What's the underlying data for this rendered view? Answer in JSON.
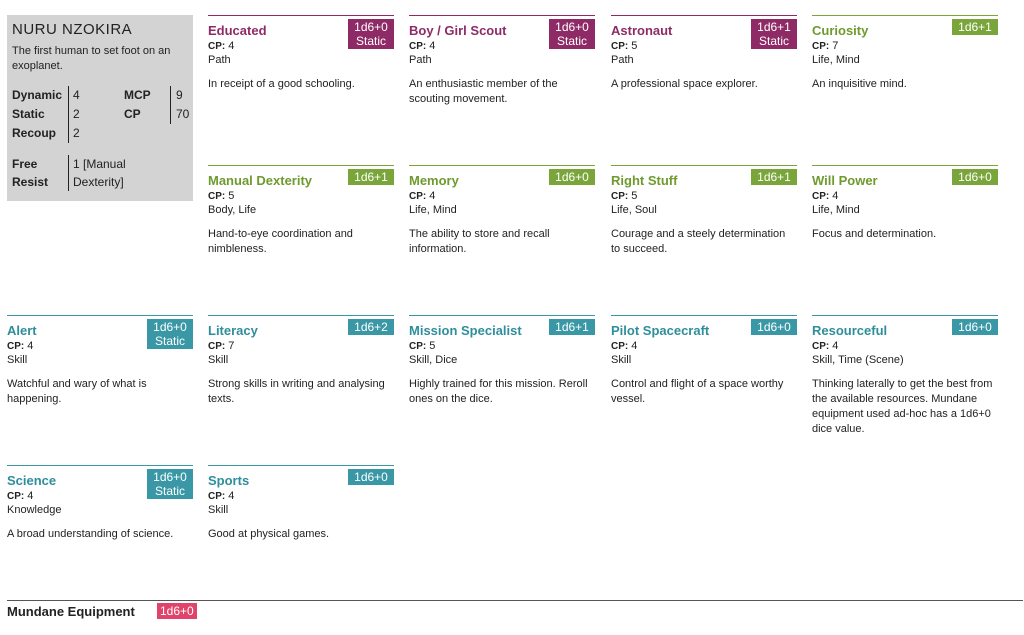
{
  "character": {
    "name": "NURU NZOKIRA",
    "description": "The first human to set foot on an exoplanet.",
    "stats": {
      "dynamic_label": "Dynamic",
      "dynamic": "4",
      "mcp_label": "MCP",
      "mcp": "9",
      "static_label": "Static",
      "static": "2",
      "cp_label": "CP",
      "cp": "70",
      "recoup_label": "Recoup",
      "recoup": "2"
    },
    "free_resist": {
      "label1": "Free",
      "label2": "Resist",
      "value1": "1 [Manual",
      "value2": "Dexterity]"
    }
  },
  "cards": [
    {
      "title": "Educated",
      "dice": "1d6+0",
      "dice2": "Static",
      "cp_label": "CP:",
      "cp": "4",
      "type": "Path",
      "text": "In receipt of a good schooling.",
      "kind": "path"
    },
    {
      "title": "Boy / Girl Scout",
      "dice": "1d6+0",
      "dice2": "Static",
      "cp_label": "CP:",
      "cp": "4",
      "type": "Path",
      "text": "An enthusiastic member of the scouting movement.",
      "kind": "path"
    },
    {
      "title": "Astronaut",
      "dice": "1d6+1",
      "dice2": "Static",
      "cp_label": "CP:",
      "cp": "5",
      "type": "Path",
      "text": "A professional space explorer.",
      "kind": "path"
    },
    {
      "title": "Curiosity",
      "dice": "1d6+1",
      "cp_label": "CP:",
      "cp": "7",
      "type": "Life, Mind",
      "text": "An inquisitive mind.",
      "kind": "attr"
    },
    {
      "title": "Manual Dexterity",
      "dice": "1d6+1",
      "cp_label": "CP:",
      "cp": "5",
      "type": "Body, Life",
      "text": "Hand-to-eye coordination and nimbleness.",
      "kind": "attr"
    },
    {
      "title": "Memory",
      "dice": "1d6+0",
      "cp_label": "CP:",
      "cp": "4",
      "type": "Life, Mind",
      "text": "The ability to store and recall information.",
      "kind": "attr"
    },
    {
      "title": "Right Stuff",
      "dice": "1d6+1",
      "cp_label": "CP:",
      "cp": "5",
      "type": "Life, Soul",
      "text": "Courage and a steely determination to succeed.",
      "kind": "attr"
    },
    {
      "title": "Will Power",
      "dice": "1d6+0",
      "cp_label": "CP:",
      "cp": "4",
      "type": "Life, Mind",
      "text": "Focus and determination.",
      "kind": "attr"
    },
    {
      "title": "Alert",
      "dice": "1d6+0",
      "dice2": "Static",
      "cp_label": "CP:",
      "cp": "4",
      "type": "Skill",
      "text": "Watchful and wary of what is happening.",
      "kind": "skill"
    },
    {
      "title": "Literacy",
      "dice": "1d6+2",
      "cp_label": "CP:",
      "cp": "7",
      "type": "Skill",
      "text": "Strong skills in writing and analysing texts.",
      "kind": "skill"
    },
    {
      "title": "Mission Specialist",
      "dice": "1d6+1",
      "cp_label": "CP:",
      "cp": "5",
      "type": "Skill, Dice",
      "text": "Highly trained for this mission. Reroll ones on the dice.",
      "kind": "skill"
    },
    {
      "title": "Pilot Spacecraft",
      "dice": "1d6+0",
      "cp_label": "CP:",
      "cp": "4",
      "type": "Skill",
      "text": "Control and flight of a space worthy vessel.",
      "kind": "skill"
    },
    {
      "title": "Resourceful",
      "dice": "1d6+0",
      "cp_label": "CP:",
      "cp": "4",
      "type": "Skill, Time (Scene)",
      "text": "Thinking laterally to get the best from the available resources. Mundane equipment used ad-hoc has a 1d6+0 dice value.",
      "kind": "skill"
    },
    {
      "title": "Science",
      "dice": "1d6+0",
      "dice2": "Static",
      "cp_label": "CP:",
      "cp": "4",
      "type": "Knowledge",
      "text": "A broad understanding of science.",
      "kind": "skill"
    },
    {
      "title": "Sports",
      "dice": "1d6+0",
      "cp_label": "CP:",
      "cp": "4",
      "type": "Skill",
      "text": "Good at physical games.",
      "kind": "skill"
    }
  ],
  "equipment": {
    "label": "Mundane Equipment",
    "dice": "1d6+0"
  },
  "colors": {
    "path": "#8e2b67",
    "attribute": "#7aa53a",
    "skill": "#3a97a5",
    "equipment": "#e0446a",
    "profile_bg": "#d3d3d3"
  }
}
